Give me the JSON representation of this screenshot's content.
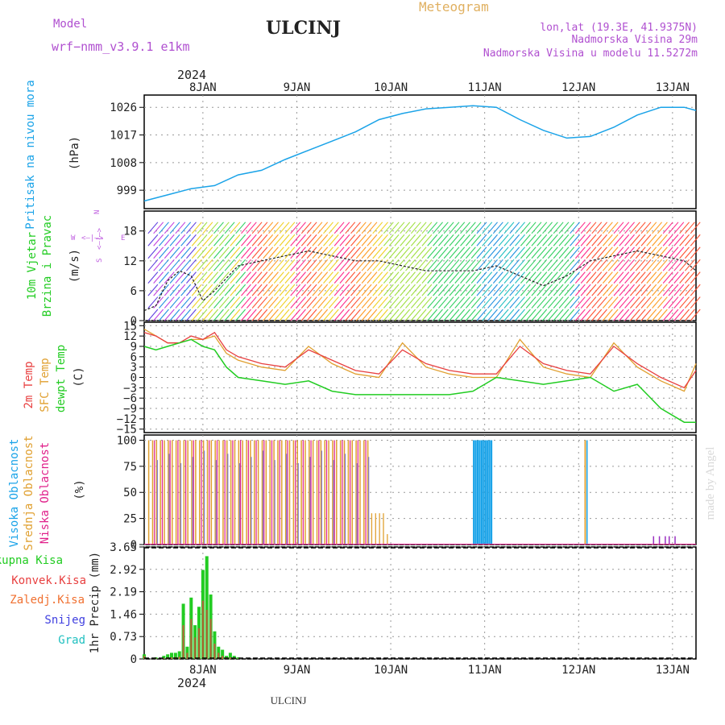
{
  "header": {
    "model_label": "Model",
    "model_name": "wrf−nmm_v3.9.1  e1km",
    "station": "ULCINJ",
    "product": "Meteogram",
    "lonlat": "lon,lat (19.3E, 41.9375N)",
    "elevation": "Nadmorska Visina 29m",
    "model_elevation": "Nadmorska Visina u modelu 11.5272m",
    "footer_station": "ULCINJ",
    "watermark": "made by Angel"
  },
  "time_axis": {
    "year_label": "2024",
    "day_labels": [
      "8JAN",
      "9JAN",
      "10JAN",
      "11JAN",
      "12JAN",
      "13JAN"
    ]
  },
  "colors": {
    "pressure": "#1aa3e8",
    "wind_label": "#22cc22",
    "t2m": "#e84040",
    "tsfc": "#e0a030",
    "dewpt": "#22cc22",
    "high_cloud": "#1aa3e8",
    "mid_cloud": "#e0a030",
    "low_cloud": "#e0208a",
    "rain_total": "#22cc22",
    "rain_conv": "#e84040",
    "rain_frz": "#f07030",
    "snow": "#4040e0",
    "hail": "#20c0c0",
    "compass": "#c060e0",
    "title_purple": "#b050d0",
    "meteogram_orange": "#e0b060"
  },
  "panels": {
    "pressure": {
      "label_main": "Pritisak na nivou mora",
      "unit": "(hPa)",
      "ticks": [
        "1026",
        "1017",
        "1008",
        "999"
      ]
    },
    "wind": {
      "label_main": "10m Vjetar",
      "label_sub": "Brzina i Pravac",
      "unit": "(m/s)",
      "ticks": [
        "18",
        "12",
        "6",
        "0"
      ],
      "compass_n": "N",
      "compass_w": "W",
      "compass_e": "E",
      "compass_s": "S",
      "compass_arrow_ns": "<–|–>",
      "compass_arrow_we": "<–|–>"
    },
    "temperature": {
      "label_t2m": "2m Temp",
      "label_sfc": "SFC Temp",
      "label_dew": "dewpt Temp",
      "unit": "(C)",
      "ticks": [
        "15",
        "12",
        "9",
        "6",
        "3",
        "0",
        "−3",
        "−6",
        "−9",
        "−12",
        "−15"
      ]
    },
    "cloud": {
      "label_high": "Visoka Oblacnost",
      "label_mid": "Srednja Oblacnost",
      "label_low": "Niska Oblacnost",
      "unit": "(%)",
      "ticks": [
        "100",
        "75",
        "50",
        "25",
        "0"
      ]
    },
    "precip": {
      "legend_total": "Ukupna Kisa",
      "legend_conv": "Konvek.Kisa",
      "legend_frz": "Zaledj.Kisa",
      "legend_snow": "Snijeg",
      "legend_hail": "Grad",
      "unit": "1hr Precip (mm)",
      "ticks": [
        "3.65",
        "2.92",
        "2.19",
        "1.46",
        "0.73",
        "0"
      ]
    }
  },
  "chart_data": {
    "type": "line",
    "pressure_hpa": {
      "hours": [
        0,
        6,
        12,
        18,
        24,
        30,
        36,
        42,
        48,
        54,
        60,
        66,
        72,
        78,
        84,
        90,
        96,
        102,
        108,
        114,
        120,
        126,
        132,
        138,
        141
      ],
      "values": [
        995.5,
        997.5,
        999.5,
        1000.5,
        1004,
        1005.5,
        1009,
        1012,
        1015,
        1018,
        1022,
        1024,
        1025.5,
        1026,
        1026.5,
        1026,
        1022,
        1018.5,
        1016,
        1016.5,
        1019.5,
        1023.5,
        1026,
        1026,
        1025
      ],
      "ylim": [
        993,
        1030
      ]
    },
    "wind_speed_ms": {
      "hours": [
        0,
        3,
        6,
        9,
        12,
        15,
        18,
        24,
        30,
        36,
        42,
        48,
        54,
        60,
        66,
        72,
        78,
        84,
        90,
        96,
        102,
        108,
        114,
        120,
        126,
        132,
        138,
        141
      ],
      "values": [
        2,
        3,
        8,
        10,
        9,
        4,
        6,
        11,
        12,
        13,
        14,
        13,
        12,
        12,
        11,
        10,
        10,
        10,
        11,
        9,
        7,
        9,
        12,
        13,
        14,
        13,
        12,
        10
      ],
      "ylim": [
        0,
        22
      ]
    },
    "temperature_c": {
      "hours": [
        0,
        3,
        6,
        9,
        12,
        15,
        18,
        21,
        24,
        30,
        36,
        42,
        48,
        54,
        60,
        66,
        72,
        78,
        84,
        90,
        96,
        102,
        108,
        114,
        120,
        126,
        132,
        138,
        141
      ],
      "t2m": [
        13,
        12,
        10,
        10,
        12,
        11,
        13,
        8,
        6,
        4,
        3,
        8,
        5,
        2,
        1,
        8,
        4,
        2,
        1,
        1,
        9,
        4,
        2,
        1,
        9,
        4,
        0,
        -3,
        2
      ],
      "tsfc": [
        14,
        12,
        10,
        10,
        11,
        11,
        12,
        7,
        5,
        3,
        2,
        9,
        4,
        1,
        0,
        10,
        3,
        1,
        0,
        0,
        11,
        3,
        1,
        0,
        10,
        3,
        -1,
        -4,
        4
      ],
      "dewpt": [
        9,
        8,
        9,
        10,
        11,
        9,
        8,
        3,
        0,
        -1,
        -2,
        -1,
        -4,
        -5,
        -5,
        -5,
        -5,
        -5,
        -4,
        0,
        -1,
        -2,
        -1,
        0,
        -4,
        -2,
        -9,
        -13,
        -13
      ],
      "ylim": [
        -16,
        16
      ]
    },
    "cloud_cover_percent": {
      "description_ranges": [
        {
          "series": "low_mid",
          "from_hour": 1,
          "to_hour": 58,
          "value": 100
        },
        {
          "series": "mid",
          "from_hour": 58,
          "to_hour": 62,
          "value": 30
        },
        {
          "series": "high",
          "from_hour": 84,
          "to_hour": 89,
          "value": 100
        },
        {
          "series": "mid",
          "from_hour": 112,
          "to_hour": 113,
          "value": 100
        },
        {
          "series": "low",
          "from_hour": 130,
          "to_hour": 135,
          "value": 10
        }
      ],
      "ylim": [
        0,
        100
      ]
    },
    "precip_mm": {
      "hours": [
        0,
        3,
        5,
        6,
        7,
        8,
        9,
        10,
        11,
        12,
        13,
        14,
        15,
        16,
        17,
        18,
        19,
        20,
        21,
        22,
        23,
        24
      ],
      "total": [
        0.15,
        0.05,
        0.1,
        0.15,
        0.2,
        0.2,
        0.25,
        1.8,
        0.4,
        2.0,
        1.1,
        1.7,
        2.9,
        3.35,
        2.1,
        0.9,
        0.4,
        0.3,
        0.1,
        0.2,
        0.1,
        0.05
      ],
      "convective": [
        0.1,
        0.02,
        0.03,
        0.05,
        0.05,
        0.06,
        0.07,
        1.1,
        0.2,
        1.3,
        0.7,
        1.0,
        1.9,
        1.6,
        1.3,
        0.5,
        0.2,
        0.1,
        0.05,
        0.05,
        0.02,
        0.01
      ],
      "ylim": [
        0,
        3.65
      ]
    },
    "x_range_hours": [
      0,
      141
    ],
    "xlabel": "",
    "ylabel": ""
  }
}
